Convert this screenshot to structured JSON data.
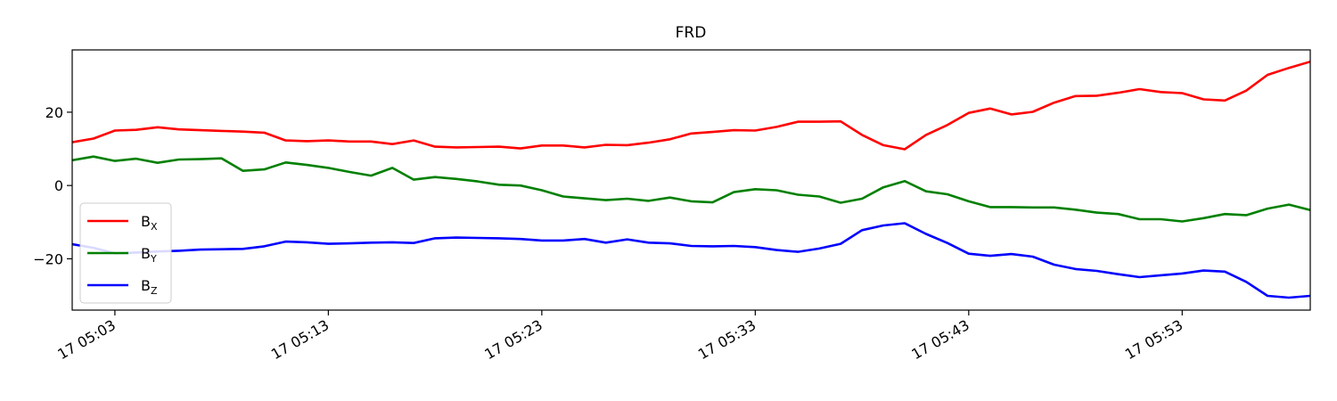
{
  "chart_data": {
    "type": "line",
    "title": "FRD",
    "xlabel": "",
    "ylabel": "",
    "x_range": [
      "17 05:01",
      "17 05:59"
    ],
    "ylim": [
      -34,
      37
    ],
    "y_ticks": [
      -20,
      0,
      20
    ],
    "x_ticks": [
      "17 05:03",
      "17 05:13",
      "17 05:23",
      "17 05:33",
      "17 05:43",
      "17 05:53"
    ],
    "x_tick_minutes": [
      3,
      13,
      23,
      33,
      43,
      53
    ],
    "x_minutes": [
      1,
      2,
      3,
      4,
      5,
      6,
      7,
      8,
      9,
      10,
      11,
      12,
      13,
      14,
      15,
      16,
      17,
      18,
      19,
      20,
      21,
      22,
      23,
      24,
      25,
      26,
      27,
      28,
      29,
      30,
      31,
      32,
      33,
      34,
      35,
      36,
      37,
      38,
      39,
      40,
      41,
      42,
      43,
      44,
      45,
      46,
      47,
      48,
      49,
      50,
      51,
      52,
      53,
      54,
      55,
      56,
      57,
      58,
      59
    ],
    "grid": false,
    "legend_position": "lower-left",
    "series": [
      {
        "name": "B",
        "subscript": "X",
        "color": "#ff0000",
        "values": [
          11.8,
          12.8,
          15.0,
          15.2,
          15.9,
          15.3,
          15.1,
          14.9,
          14.7,
          14.4,
          12.3,
          12.1,
          12.3,
          12.0,
          12.0,
          11.3,
          12.3,
          10.6,
          10.4,
          10.5,
          10.6,
          10.1,
          10.9,
          10.9,
          10.4,
          11.1,
          11.0,
          11.7,
          12.6,
          14.2,
          14.6,
          15.1,
          15.0,
          16.0,
          17.4,
          17.4,
          17.5,
          13.8,
          11.0,
          9.9,
          13.8,
          16.5,
          19.8,
          21.0,
          19.4,
          20.1,
          22.6,
          24.4,
          24.5,
          25.3,
          26.3,
          25.5,
          25.2,
          23.5,
          23.2,
          25.9,
          30.2,
          32.1,
          33.8
        ]
      },
      {
        "name": "B",
        "subscript": "Y",
        "color": "#008000",
        "values": [
          6.9,
          7.9,
          6.7,
          7.3,
          6.2,
          7.1,
          7.2,
          7.4,
          4.0,
          4.4,
          6.3,
          5.6,
          4.8,
          3.7,
          2.7,
          4.8,
          1.6,
          2.3,
          1.8,
          1.1,
          0.2,
          0.0,
          -1.3,
          -3.0,
          -3.5,
          -4.0,
          -3.6,
          -4.2,
          -3.3,
          -4.3,
          -4.6,
          -1.8,
          -1.0,
          -1.3,
          -2.5,
          -3.0,
          -4.7,
          -3.6,
          -0.5,
          1.2,
          -1.6,
          -2.4,
          -4.3,
          -5.9,
          -5.9,
          -6.0,
          -6.0,
          -6.6,
          -7.4,
          -7.8,
          -9.2,
          -9.2,
          -9.8,
          -8.9,
          -7.8,
          -8.1,
          -6.3,
          -5.2,
          -6.7
        ]
      },
      {
        "name": "B",
        "subscript": "Z",
        "color": "#0000ff",
        "values": [
          -16.0,
          -17.0,
          -18.5,
          -18.3,
          -18.0,
          -17.8,
          -17.5,
          -17.4,
          -17.3,
          -16.6,
          -15.3,
          -15.5,
          -15.9,
          -15.8,
          -15.6,
          -15.5,
          -15.7,
          -14.4,
          -14.2,
          -14.3,
          -14.4,
          -14.6,
          -15.0,
          -15.0,
          -14.6,
          -15.6,
          -14.7,
          -15.6,
          -15.8,
          -16.5,
          -16.6,
          -16.5,
          -16.8,
          -17.6,
          -18.1,
          -17.2,
          -15.9,
          -12.2,
          -10.9,
          -10.3,
          -13.2,
          -15.7,
          -18.6,
          -19.2,
          -18.7,
          -19.4,
          -21.6,
          -22.8,
          -23.3,
          -24.2,
          -25.0,
          -24.5,
          -24.0,
          -23.2,
          -23.5,
          -26.3,
          -30.1,
          -30.6,
          -30.1
        ]
      }
    ]
  }
}
